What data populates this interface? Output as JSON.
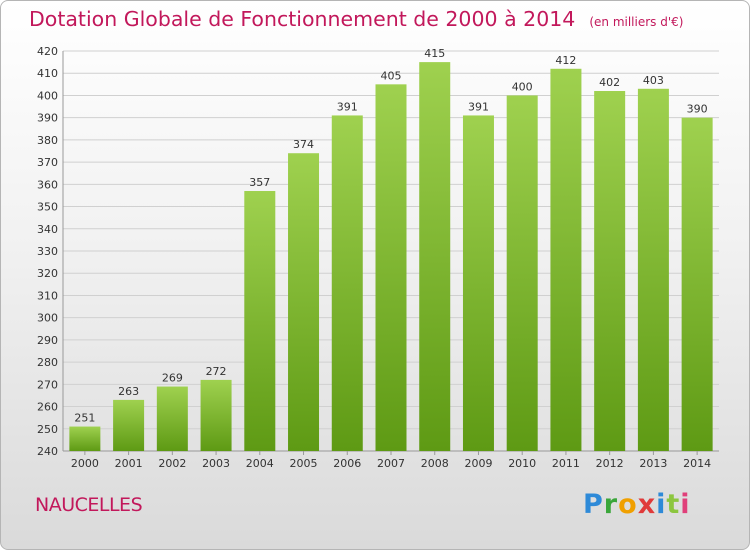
{
  "title": "Dotation Globale de Fonctionnement de 2000 à 2014",
  "unit_note": "(en milliers d'€)",
  "town": "NAUCELLES",
  "logo": {
    "letters": [
      "P",
      "r",
      "o",
      "x",
      "i",
      "t",
      "i"
    ],
    "colors": [
      "#2e8ad8",
      "#3aa63a",
      "#f0a000",
      "#e03a3a",
      "#2e8ad8",
      "#8cc63f",
      "#e0407a"
    ]
  },
  "colors": {
    "title": "#c2185b",
    "bar_light": "#9fd14f",
    "bar_dark": "#5e9a14",
    "grid": "#d0d0d0",
    "axis_text": "#333333"
  },
  "chart_data": {
    "type": "bar",
    "title": "Dotation Globale de Fonctionnement de 2000 à 2014",
    "xlabel": "",
    "ylabel": "",
    "categories": [
      "2000",
      "2001",
      "2002",
      "2003",
      "2004",
      "2005",
      "2006",
      "2007",
      "2008",
      "2009",
      "2010",
      "2011",
      "2012",
      "2013",
      "2014"
    ],
    "values": [
      251,
      263,
      269,
      272,
      357,
      374,
      391,
      405,
      415,
      391,
      400,
      412,
      402,
      403,
      390
    ],
    "ylim": [
      240,
      420
    ],
    "yticks": [
      240,
      250,
      260,
      270,
      280,
      290,
      300,
      310,
      320,
      330,
      340,
      350,
      360,
      370,
      380,
      390,
      400,
      410,
      420
    ],
    "grid": true,
    "data_labels": true
  }
}
